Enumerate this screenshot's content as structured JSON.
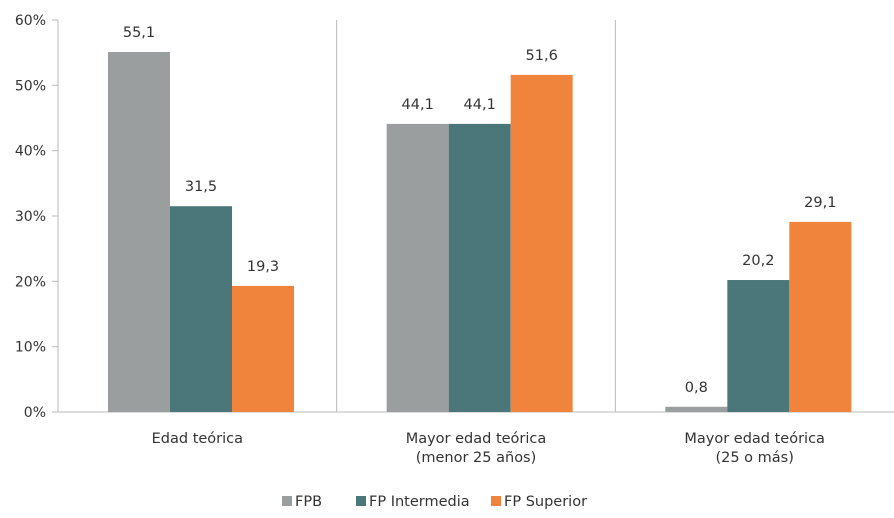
{
  "chart_data": {
    "type": "bar",
    "categories": [
      [
        "Edad teórica"
      ],
      [
        "Mayor edad teórica",
        "(menor 25 años)"
      ],
      [
        "Mayor edad teórica",
        "(25 o más)"
      ]
    ],
    "series": [
      {
        "name": "FPB",
        "color": "#9a9e9f",
        "values": [
          55.1,
          44.1,
          0.8
        ],
        "labels": [
          "55,1",
          "44,1",
          "0,8"
        ]
      },
      {
        "name": "FP Intermedia",
        "color": "#4b777b",
        "values": [
          31.5,
          44.1,
          20.2
        ],
        "labels": [
          "31,5",
          "44,1",
          "20,2"
        ]
      },
      {
        "name": "FP Superior",
        "color": "#f0843c",
        "values": [
          19.3,
          51.6,
          29.1
        ],
        "labels": [
          "19,3",
          "51,6",
          "29,1"
        ]
      }
    ],
    "y_ticks": [
      0,
      10,
      20,
      30,
      40,
      50,
      60
    ],
    "y_tick_labels": [
      "0%",
      "10%",
      "20%",
      "30%",
      "40%",
      "50%",
      "60%"
    ],
    "ylim": [
      0,
      60
    ],
    "grid": false,
    "category_separators": true,
    "legend_position": "bottom-center"
  }
}
